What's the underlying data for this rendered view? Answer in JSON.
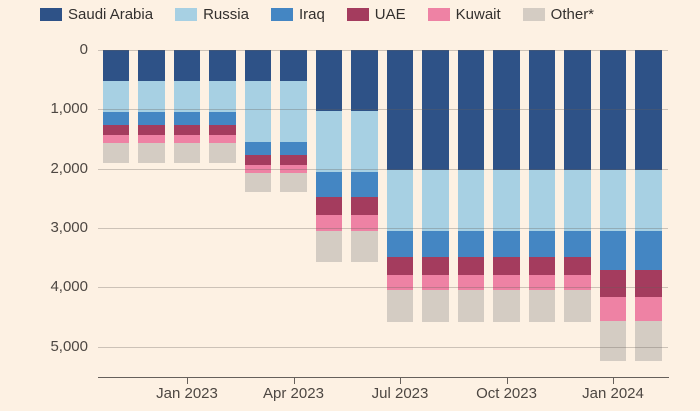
{
  "background_color": "#fdf1e3",
  "colors": {
    "gridline": "rgba(102,96,91,0.32)",
    "axis_line": "#66605b",
    "tick_text": "#4d4742",
    "legend_text": "#33302e"
  },
  "legend": {
    "note": "color key for stacked series",
    "items": [
      "Saudi Arabia",
      "Russia",
      "Iraq",
      "UAE",
      "Kuwait",
      "Other*"
    ]
  },
  "chart_data": {
    "type": "bar",
    "stacked": true,
    "orientation": "vertical-downward",
    "title": "",
    "xlabel": "",
    "ylabel": "",
    "grid": "horizontal, drawn over bars",
    "legend_position": "top",
    "categories": [
      "Nov 2022",
      "Dec 2022",
      "Jan 2023",
      "Feb 2023",
      "Mar 2023",
      "Apr 2023",
      "May 2023",
      "Jun 2023",
      "Jul 2023",
      "Aug 2023",
      "Sep 2023",
      "Oct 2023",
      "Nov 2023",
      "Dec 2023",
      "Jan 2024",
      "Feb 2024"
    ],
    "series": [
      {
        "name": "Saudi Arabia",
        "color": "#2e5287",
        "values": [
          526,
          526,
          526,
          526,
          526,
          526,
          1026,
          1026,
          2026,
          2026,
          2026,
          2026,
          2026,
          2026,
          2026,
          2026
        ]
      },
      {
        "name": "Russia",
        "color": "#a7d0e3",
        "values": [
          526,
          526,
          526,
          526,
          1026,
          1026,
          1026,
          1026,
          1026,
          1026,
          1026,
          1026,
          1026,
          1026,
          1026,
          1026
        ]
      },
      {
        "name": "Iraq",
        "color": "#4486c3",
        "values": [
          220,
          220,
          220,
          220,
          220,
          220,
          431,
          431,
          431,
          431,
          431,
          431,
          431,
          431,
          654,
          654
        ]
      },
      {
        "name": "UAE",
        "color": "#a43c5e",
        "values": [
          160,
          160,
          160,
          160,
          160,
          160,
          304,
          304,
          304,
          304,
          304,
          304,
          304,
          304,
          467,
          467
        ]
      },
      {
        "name": "Kuwait",
        "color": "#ee82a4",
        "values": [
          135,
          135,
          135,
          135,
          135,
          135,
          263,
          263,
          263,
          263,
          263,
          263,
          263,
          263,
          398,
          398
        ]
      },
      {
        "name": "Other*",
        "color": "#d4ccc3",
        "values": [
          333,
          333,
          333,
          333,
          333,
          333,
          530,
          530,
          530,
          530,
          530,
          530,
          530,
          530,
          680,
          680
        ]
      }
    ],
    "y_axis": {
      "direction": "down",
      "ticks": [
        {
          "label": "0",
          "value": 0
        },
        {
          "label": "1,000",
          "value": 1000
        },
        {
          "label": "2,000",
          "value": 2000
        },
        {
          "label": "3,000",
          "value": 3000
        },
        {
          "label": "4,000",
          "value": 4000
        },
        {
          "label": "5,000",
          "value": 5000
        }
      ],
      "range": [
        0,
        5515
      ]
    },
    "x_axis": {
      "ticks": [
        {
          "label": "Jan 2023",
          "category_index": 2
        },
        {
          "label": "Apr 2023",
          "category_index": 5
        },
        {
          "label": "Jul 2023",
          "category_index": 8
        },
        {
          "label": "Oct 2023",
          "category_index": 11
        },
        {
          "label": "Jan 2024",
          "category_index": 14
        }
      ]
    }
  }
}
